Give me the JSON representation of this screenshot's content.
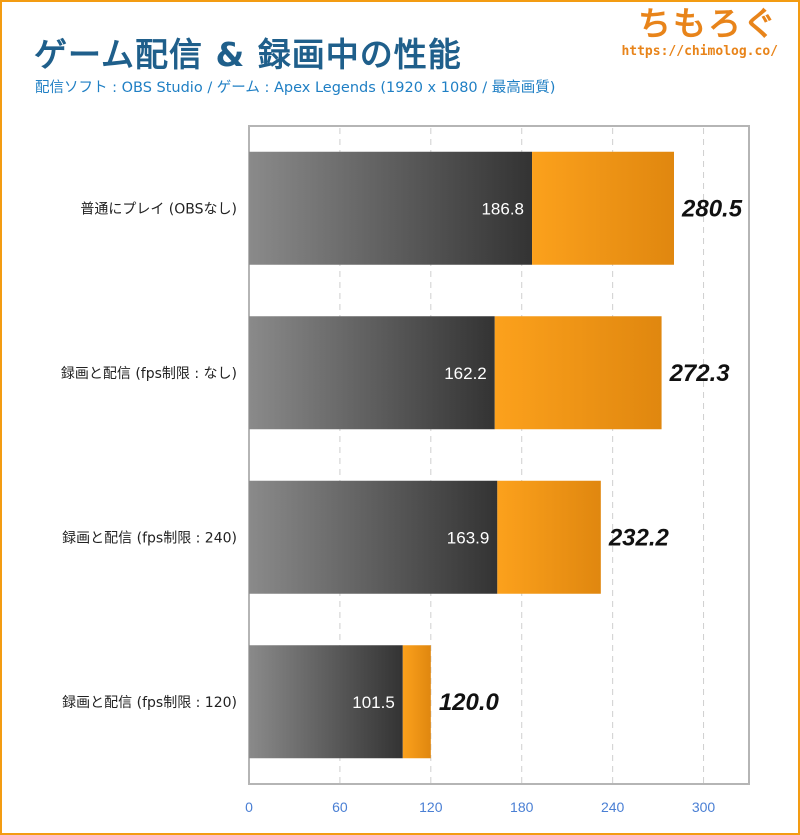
{
  "header": {
    "title": "ゲーム配信 & 録画中の性能",
    "subtitle": "配信ソフト : OBS Studio / ゲーム : Apex Legends (1920 x 1080 / 最高画質)"
  },
  "logo": {
    "name": "ちもろぐ",
    "url": "https://chimolog.co/"
  },
  "colors": {
    "gray_dark": "#333333",
    "gray_light": "#8a8a8a",
    "orange_dark": "#e0870f",
    "orange_light": "#fca11c",
    "axis_tick": "#4a7fd4"
  },
  "chart_data": {
    "type": "bar",
    "orientation": "horizontal",
    "stacked": true,
    "categories": [
      "普通にプレイ (OBSなし)",
      "録画と配信 (fps制限 : なし)",
      "録画と配信 (fps制限 : 240)",
      "録画と配信 (fps制限 : 120)"
    ],
    "series": [
      {
        "values": [
          186.8,
          162.2,
          163.9,
          101.5
        ],
        "inner_labels": [
          "186.8",
          "162.2",
          "163.9",
          "101.5"
        ]
      },
      {
        "totals": [
          280.5,
          272.3,
          232.2,
          120.0
        ],
        "total_labels": [
          "280.5",
          "272.3",
          "232.2",
          "120.0"
        ]
      }
    ],
    "xlim": [
      0,
      330
    ],
    "xticks": [
      0,
      60,
      120,
      180,
      240,
      300
    ],
    "grid": true
  }
}
